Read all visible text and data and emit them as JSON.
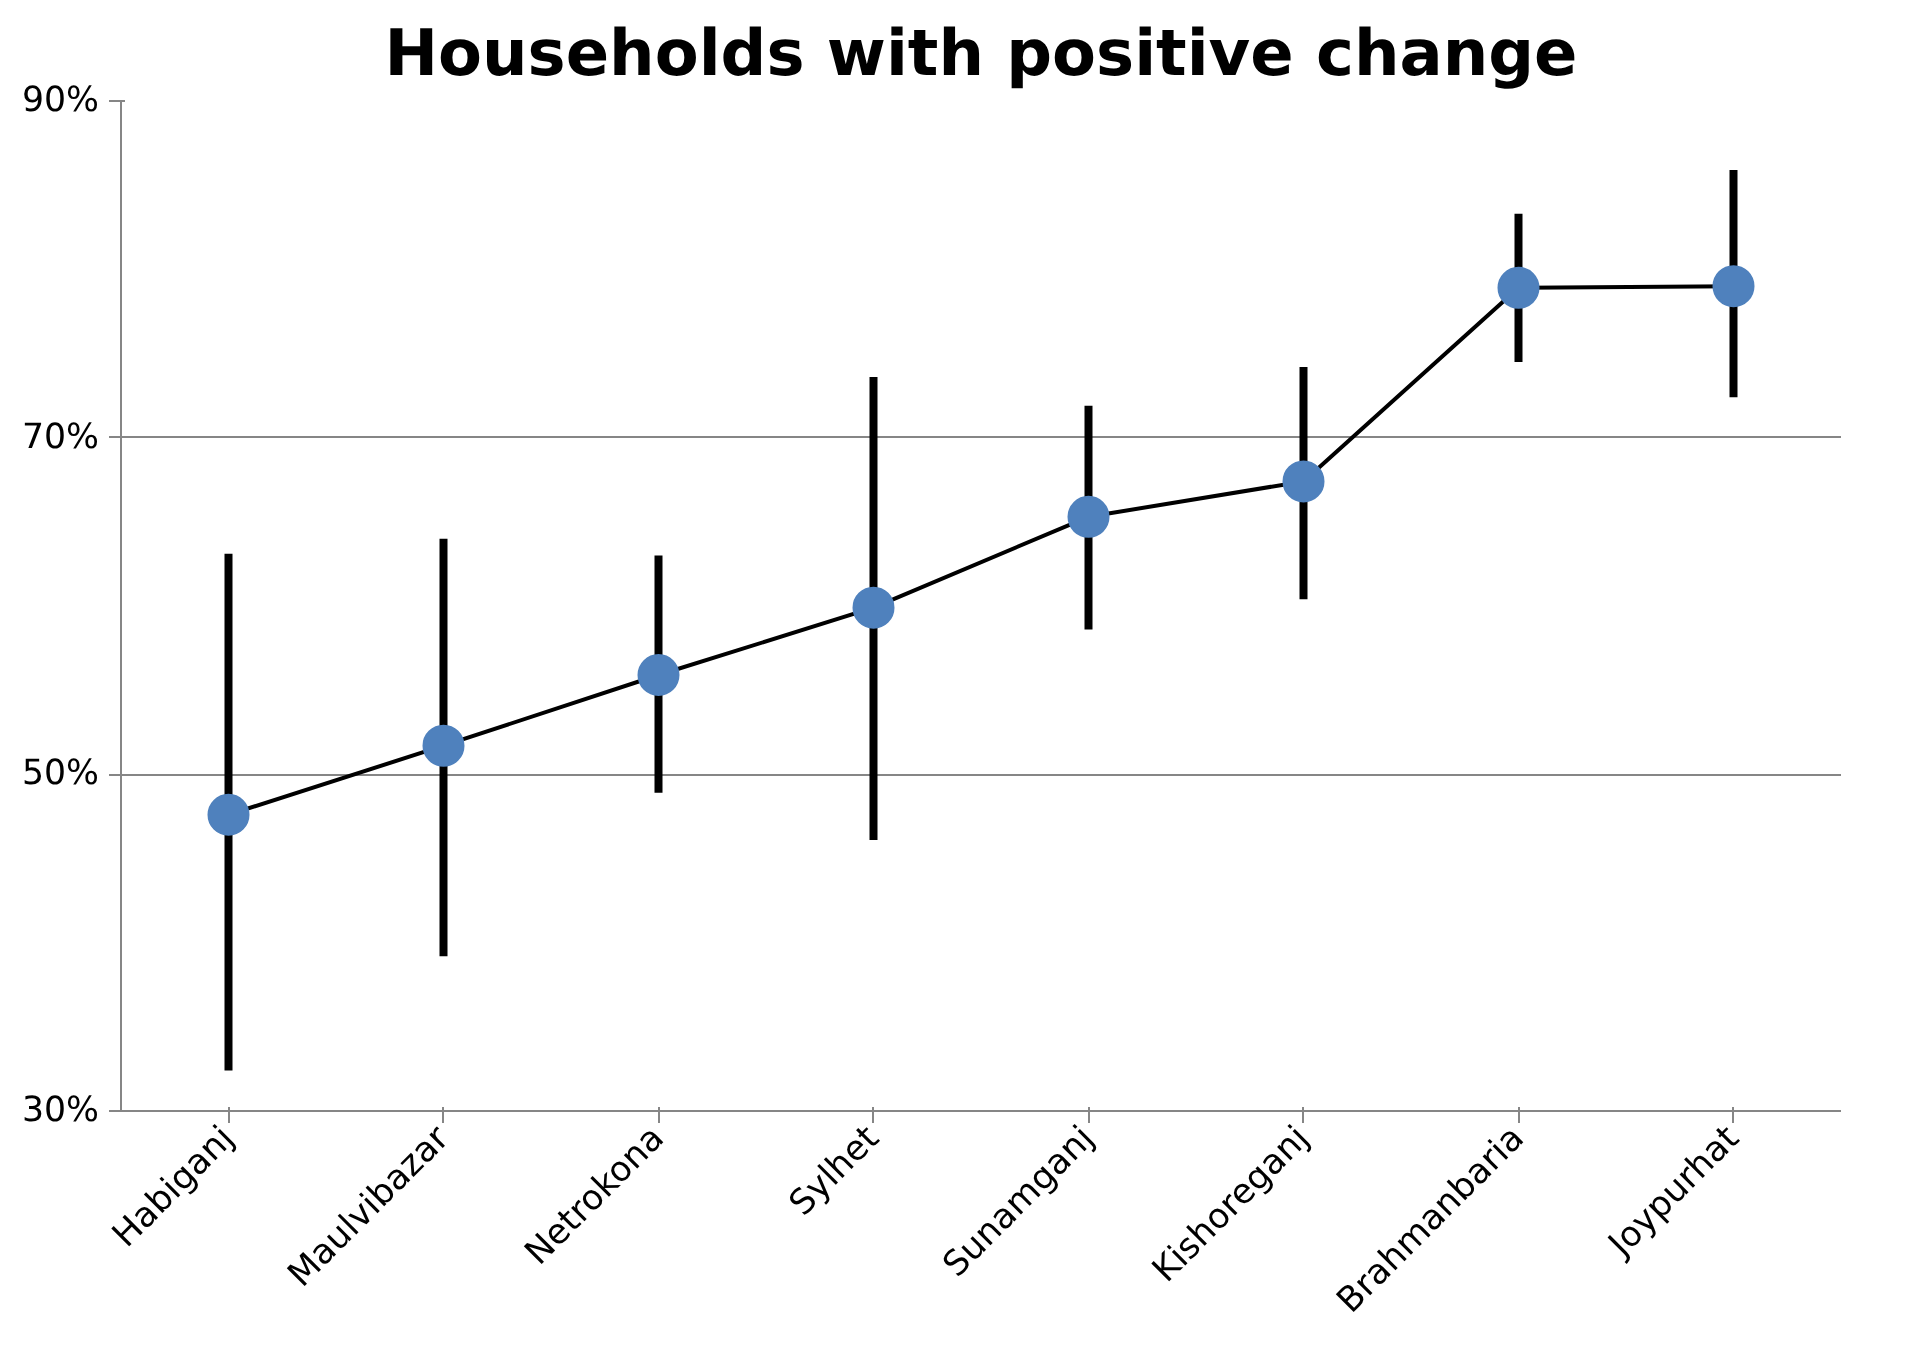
{
  "chart_data": {
    "type": "line",
    "title": "Households with positive change",
    "categories": [
      "Habiganj",
      "Maulvibazar",
      "Netrokona",
      "Sylhet",
      "Sunamganj",
      "Kishoreganj",
      "Brahmanbaria",
      "Joypurhat"
    ],
    "series": [
      {
        "color": "#4f81bd",
        "values": [
          47.6,
          51.7,
          55.9,
          59.9,
          65.3,
          67.4,
          78.9,
          79.0
        ],
        "errors": [
          [
            32.4,
            63.1
          ],
          [
            39.2,
            64.0
          ],
          [
            48.9,
            63.0
          ],
          [
            46.1,
            73.6
          ],
          [
            58.6,
            71.9
          ],
          [
            60.4,
            74.2
          ],
          [
            74.5,
            83.3
          ],
          [
            72.4,
            85.9
          ]
        ]
      }
    ],
    "ylim": [
      30,
      90
    ],
    "yticks": [
      {
        "value": 30,
        "label": "30%"
      },
      {
        "value": 50,
        "label": "50%"
      },
      {
        "value": 70,
        "label": "70%"
      },
      {
        "value": 90,
        "label": "90%"
      }
    ],
    "grid": "y",
    "marker": "circle",
    "line_style": "solid"
  }
}
